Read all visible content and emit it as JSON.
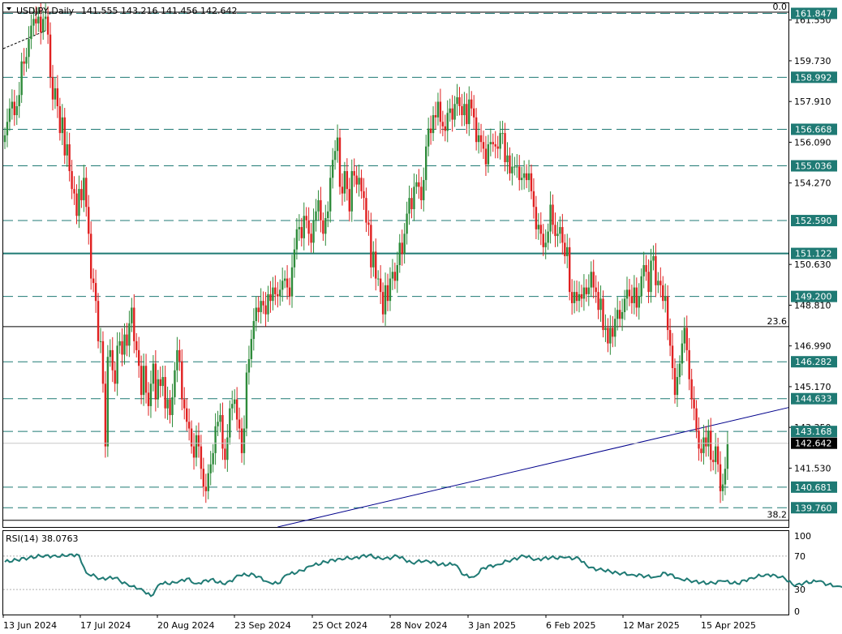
{
  "chart_data": {
    "type": "candlestick",
    "symbol": "USDJPY",
    "timeframe": "Daily",
    "ohlc_header": [
      "141.555",
      "143.216",
      "141.456",
      "142.642"
    ],
    "last_price": "142.642",
    "y_axis_ticks": [
      "161.550",
      "159.730",
      "157.910",
      "156.090",
      "154.270",
      "150.630",
      "148.810",
      "146.990",
      "145.170",
      "143.350",
      "141.530"
    ],
    "ylim": [
      138.9,
      162.3
    ],
    "x_tick_labels": [
      "13 Jun 2024",
      "17 Jul 2024",
      "20 Aug 2024",
      "23 Sep 2024",
      "25 Oct 2024",
      "28 Nov 2024",
      "3 Jan 2025",
      "6 Feb 2025",
      "12 Mar 2025",
      "15 Apr 2025"
    ],
    "levels": [
      {
        "value": 161.847,
        "label": "161.847",
        "style": "dashed"
      },
      {
        "value": 158.992,
        "label": "158.992",
        "style": "dashed"
      },
      {
        "value": 156.668,
        "label": "156.668",
        "style": "dashed"
      },
      {
        "value": 155.036,
        "label": "155.036",
        "style": "dashed"
      },
      {
        "value": 152.59,
        "label": "152.590",
        "style": "dashed"
      },
      {
        "value": 151.122,
        "label": "151.122",
        "style": "solid"
      },
      {
        "value": 149.2,
        "label": "149.200",
        "style": "dashed"
      },
      {
        "value": 146.282,
        "label": "146.282",
        "style": "dashed"
      },
      {
        "value": 144.633,
        "label": "144.633",
        "style": "dashed"
      },
      {
        "value": 143.168,
        "label": "143.168",
        "style": "dashed"
      },
      {
        "value": 140.681,
        "label": "140.681",
        "style": "dashed"
      },
      {
        "value": 139.76,
        "label": "139.760",
        "style": "dashed"
      }
    ],
    "fib_levels": [
      {
        "label": "0.0",
        "value": 161.9
      },
      {
        "label": "23.6",
        "value": 147.85
      },
      {
        "label": "38.2",
        "value": 139.2
      }
    ],
    "trendline": {
      "from": [
        114,
        138.9
      ],
      "to": [
        394,
        145.9
      ]
    },
    "colors": {
      "up": "#2e8b3a",
      "down": "#e02020",
      "level": "#1f7a74",
      "rsi": "#1f7a74"
    },
    "rsi": {
      "label": "RSI(14)",
      "value_text": "38.0763",
      "ticks": [
        "100",
        "70",
        "30",
        "0"
      ],
      "levels": [
        70,
        30
      ],
      "anchors": [
        [
          0,
          63
        ],
        [
          10,
          68
        ],
        [
          17,
          71
        ],
        [
          22,
          69
        ],
        [
          27,
          72
        ],
        [
          31,
          71
        ],
        [
          34,
          50
        ],
        [
          40,
          43
        ],
        [
          46,
          44
        ],
        [
          52,
          34
        ],
        [
          57,
          31
        ],
        [
          61,
          22
        ],
        [
          65,
          37
        ],
        [
          72,
          38
        ],
        [
          76,
          43
        ],
        [
          80,
          37
        ],
        [
          86,
          42
        ],
        [
          92,
          36
        ],
        [
          98,
          47
        ],
        [
          104,
          48
        ],
        [
          110,
          39
        ],
        [
          114,
          37
        ],
        [
          118,
          48
        ],
        [
          122,
          50
        ],
        [
          128,
          58
        ],
        [
          134,
          63
        ],
        [
          140,
          67
        ],
        [
          146,
          68
        ],
        [
          152,
          71
        ],
        [
          158,
          66
        ],
        [
          164,
          70
        ],
        [
          170,
          62
        ],
        [
          176,
          65
        ],
        [
          182,
          60
        ],
        [
          188,
          60
        ],
        [
          192,
          47
        ],
        [
          196,
          45
        ],
        [
          200,
          56
        ],
        [
          206,
          60
        ],
        [
          212,
          66
        ],
        [
          217,
          70
        ],
        [
          222,
          66
        ],
        [
          228,
          68
        ],
        [
          234,
          68
        ],
        [
          240,
          67
        ],
        [
          244,
          56
        ],
        [
          250,
          53
        ],
        [
          256,
          50
        ],
        [
          262,
          48
        ],
        [
          268,
          46
        ],
        [
          272,
          45
        ],
        [
          276,
          50
        ],
        [
          282,
          43
        ],
        [
          288,
          40
        ],
        [
          294,
          37
        ],
        [
          300,
          40
        ],
        [
          306,
          37
        ],
        [
          312,
          44
        ],
        [
          318,
          48
        ],
        [
          322,
          47
        ],
        [
          326,
          43
        ],
        [
          330,
          34
        ],
        [
          334,
          38
        ],
        [
          340,
          40
        ],
        [
          344,
          36
        ],
        [
          348,
          34
        ],
        [
          352,
          35
        ],
        [
          356,
          33
        ],
        [
          360,
          38
        ]
      ]
    },
    "candles": [
      [
        0,
        156.4
      ],
      [
        1,
        157.0
      ],
      [
        2,
        157.6
      ],
      [
        3,
        157.9
      ],
      [
        4,
        157.3
      ],
      [
        5,
        157.7
      ],
      [
        6,
        158.2
      ],
      [
        7,
        159.7
      ],
      [
        8,
        159.6
      ],
      [
        9,
        159.9
      ],
      [
        10,
        160.7
      ],
      [
        11,
        161.3
      ],
      [
        12,
        161.6
      ],
      [
        13,
        161.4
      ],
      [
        14,
        161.7
      ],
      [
        15,
        161.0
      ],
      [
        16,
        161.6
      ],
      [
        17,
        161.7
      ],
      [
        18,
        160.9
      ],
      [
        19,
        159.0
      ],
      [
        20,
        158.0
      ],
      [
        21,
        158.5
      ],
      [
        22,
        157.7
      ],
      [
        23,
        156.5
      ],
      [
        24,
        157.2
      ],
      [
        25,
        155.5
      ],
      [
        26,
        156.0
      ],
      [
        27,
        154.8
      ],
      [
        28,
        154.0
      ],
      [
        29,
        153.8
      ],
      [
        30,
        152.8
      ],
      [
        31,
        154.0
      ],
      [
        32,
        153.5
      ],
      [
        33,
        154.5
      ],
      [
        34,
        153.2
      ],
      [
        35,
        152.0
      ],
      [
        36,
        150.0
      ],
      [
        37,
        149.8
      ],
      [
        38,
        149.0
      ],
      [
        39,
        147.2
      ],
      [
        40,
        147.2
      ],
      [
        41,
        145.3
      ],
      [
        42,
        142.5
      ],
      [
        43,
        146.5
      ],
      [
        44,
        146.8
      ],
      [
        45,
        145.9
      ],
      [
        46,
        145.3
      ],
      [
        47,
        147.0
      ],
      [
        48,
        147.2
      ],
      [
        49,
        146.6
      ],
      [
        50,
        147.5
      ],
      [
        51,
        147.0
      ],
      [
        52,
        148.0
      ],
      [
        53,
        148.7
      ],
      [
        54,
        147.2
      ],
      [
        55,
        146.8
      ],
      [
        56,
        146.1
      ],
      [
        57,
        144.8
      ],
      [
        58,
        146.1
      ],
      [
        59,
        144.9
      ],
      [
        60,
        144.3
      ],
      [
        61,
        145.3
      ],
      [
        62,
        146.2
      ],
      [
        63,
        144.6
      ],
      [
        64,
        145.5
      ],
      [
        65,
        145.2
      ],
      [
        66,
        145.6
      ],
      [
        67,
        144.2
      ],
      [
        68,
        144.6
      ],
      [
        69,
        143.9
      ],
      [
        70,
        144.7
      ],
      [
        71,
        145.9
      ],
      [
        72,
        146.8
      ],
      [
        73,
        146.3
      ],
      [
        74,
        144.6
      ],
      [
        75,
        144.2
      ],
      [
        76,
        143.6
      ],
      [
        77,
        143.3
      ],
      [
        78,
        142.5
      ],
      [
        79,
        142.0
      ],
      [
        80,
        143.0
      ],
      [
        81,
        142.5
      ],
      [
        82,
        141.5
      ],
      [
        83,
        140.7
      ],
      [
        84,
        140.5
      ],
      [
        85,
        141.3
      ],
      [
        86,
        141.7
      ],
      [
        87,
        142.2
      ],
      [
        88,
        143.4
      ],
      [
        89,
        143.6
      ],
      [
        90,
        143.9
      ],
      [
        91,
        142.4
      ],
      [
        92,
        141.9
      ],
      [
        93,
        142.9
      ],
      [
        94,
        144.2
      ],
      [
        95,
        144.4
      ],
      [
        96,
        144.6
      ],
      [
        97,
        143.7
      ],
      [
        98,
        143.3
      ],
      [
        99,
        142.2
      ],
      [
        100,
        143.3
      ],
      [
        101,
        145.8
      ],
      [
        102,
        146.4
      ],
      [
        103,
        147.3
      ],
      [
        104,
        148.1
      ],
      [
        105,
        148.7
      ],
      [
        106,
        148.5
      ],
      [
        107,
        149.0
      ],
      [
        108,
        148.8
      ],
      [
        109,
        148.4
      ],
      [
        110,
        149.3
      ],
      [
        111,
        149.0
      ],
      [
        112,
        149.6
      ],
      [
        113,
        149.3
      ],
      [
        114,
        149.2
      ],
      [
        115,
        149.5
      ],
      [
        116,
        149.9
      ],
      [
        117,
        150.0
      ],
      [
        118,
        149.6
      ],
      [
        119,
        149.2
      ],
      [
        120,
        150.5
      ],
      [
        121,
        151.3
      ],
      [
        122,
        152.2
      ],
      [
        123,
        152.3
      ],
      [
        124,
        151.8
      ],
      [
        125,
        152.8
      ],
      [
        126,
        152.6
      ],
      [
        127,
        152.0
      ],
      [
        128,
        151.6
      ],
      [
        129,
        152.6
      ],
      [
        130,
        153.0
      ],
      [
        131,
        153.5
      ],
      [
        132,
        152.6
      ],
      [
        133,
        152.0
      ],
      [
        134,
        152.7
      ],
      [
        135,
        153.0
      ],
      [
        136,
        154.5
      ],
      [
        137,
        155.3
      ],
      [
        138,
        155.7
      ],
      [
        139,
        156.3
      ],
      [
        140,
        154.1
      ],
      [
        141,
        153.8
      ],
      [
        142,
        154.8
      ],
      [
        143,
        154.0
      ],
      [
        144,
        153.0
      ],
      [
        145,
        154.8
      ],
      [
        146,
        154.6
      ],
      [
        147,
        154.2
      ],
      [
        148,
        154.5
      ],
      [
        149,
        153.9
      ],
      [
        150,
        153.6
      ],
      [
        151,
        152.5
      ],
      [
        152,
        152.4
      ],
      [
        153,
        150.5
      ],
      [
        154,
        151.2
      ],
      [
        155,
        150.0
      ],
      [
        156,
        150.0
      ],
      [
        157,
        149.4
      ],
      [
        158,
        148.4
      ],
      [
        159,
        149.7
      ],
      [
        160,
        149.0
      ],
      [
        161,
        150.0
      ],
      [
        162,
        150.3
      ],
      [
        163,
        149.9
      ],
      [
        164,
        150.6
      ],
      [
        165,
        151.6
      ],
      [
        166,
        151.1
      ],
      [
        167,
        152.0
      ],
      [
        168,
        152.9
      ],
      [
        169,
        153.6
      ],
      [
        170,
        153.1
      ],
      [
        171,
        154.1
      ],
      [
        172,
        154.3
      ],
      [
        173,
        154.1
      ],
      [
        174,
        153.5
      ],
      [
        175,
        154.4
      ],
      [
        176,
        155.9
      ],
      [
        177,
        156.7
      ],
      [
        178,
        156.5
      ],
      [
        179,
        157.3
      ],
      [
        180,
        157.2
      ],
      [
        181,
        157.9
      ],
      [
        182,
        157.0
      ],
      [
        183,
        156.8
      ],
      [
        184,
        156.6
      ],
      [
        185,
        157.4
      ],
      [
        186,
        157.6
      ],
      [
        187,
        157.1
      ],
      [
        188,
        157.8
      ],
      [
        189,
        158.1
      ],
      [
        190,
        157.7
      ],
      [
        191,
        157.3
      ],
      [
        192,
        157.8
      ],
      [
        193,
        156.9
      ],
      [
        194,
        158.0
      ],
      [
        195,
        157.6
      ],
      [
        196,
        157.2
      ],
      [
        197,
        156.1
      ],
      [
        198,
        156.4
      ],
      [
        199,
        156.1
      ],
      [
        200,
        155.8
      ],
      [
        201,
        155.1
      ],
      [
        202,
        156.0
      ],
      [
        203,
        156.1
      ],
      [
        204,
        156.0
      ],
      [
        205,
        155.9
      ],
      [
        206,
        155.8
      ],
      [
        207,
        156.5
      ],
      [
        208,
        156.5
      ],
      [
        209,
        155.2
      ],
      [
        210,
        155.5
      ],
      [
        211,
        154.7
      ],
      [
        212,
        155.0
      ],
      [
        213,
        155.0
      ],
      [
        214,
        155.0
      ],
      [
        215,
        154.4
      ],
      [
        216,
        154.5
      ],
      [
        217,
        154.7
      ],
      [
        218,
        154.4
      ],
      [
        219,
        154.7
      ],
      [
        220,
        153.9
      ],
      [
        221,
        153.2
      ],
      [
        222,
        152.2
      ],
      [
        223,
        152.4
      ],
      [
        224,
        152.0
      ],
      [
        225,
        151.4
      ],
      [
        226,
        151.6
      ],
      [
        227,
        152.1
      ],
      [
        228,
        153.3
      ],
      [
        229,
        152.4
      ],
      [
        230,
        151.9
      ],
      [
        231,
        152.0
      ],
      [
        232,
        152.3
      ],
      [
        233,
        151.6
      ],
      [
        234,
        151.0
      ],
      [
        235,
        151.4
      ],
      [
        236,
        149.4
      ],
      [
        237,
        148.9
      ],
      [
        238,
        149.4
      ],
      [
        239,
        149.0
      ],
      [
        240,
        149.3
      ],
      [
        241,
        149.1
      ],
      [
        242,
        149.6
      ],
      [
        243,
        149.3
      ],
      [
        244,
        149.6
      ],
      [
        245,
        150.3
      ],
      [
        246,
        149.6
      ],
      [
        247,
        149.4
      ],
      [
        248,
        148.6
      ],
      [
        249,
        149.1
      ],
      [
        250,
        147.7
      ],
      [
        251,
        147.8
      ],
      [
        252,
        147.1
      ],
      [
        253,
        147.8
      ],
      [
        254,
        147.4
      ],
      [
        255,
        148.2
      ],
      [
        256,
        148.6
      ],
      [
        257,
        148.2
      ],
      [
        258,
        148.5
      ],
      [
        259,
        149.1
      ],
      [
        260,
        149.5
      ],
      [
        261,
        149.2
      ],
      [
        262,
        148.9
      ],
      [
        263,
        149.6
      ],
      [
        264,
        148.7
      ],
      [
        265,
        149.2
      ],
      [
        266,
        150.1
      ],
      [
        267,
        150.6
      ],
      [
        268,
        150.3
      ],
      [
        269,
        149.4
      ],
      [
        270,
        150.8
      ],
      [
        271,
        151.0
      ],
      [
        272,
        149.7
      ],
      [
        273,
        149.9
      ],
      [
        274,
        149.7
      ],
      [
        275,
        149.0
      ],
      [
        276,
        149.2
      ],
      [
        277,
        147.7
      ],
      [
        278,
        147.0
      ],
      [
        279,
        146.0
      ],
      [
        280,
        144.8
      ],
      [
        281,
        145.6
      ],
      [
        282,
        146.2
      ],
      [
        283,
        147.1
      ],
      [
        284,
        147.8
      ],
      [
        285,
        146.8
      ],
      [
        286,
        145.5
      ],
      [
        287,
        144.6
      ],
      [
        288,
        144.2
      ],
      [
        289,
        143.2
      ],
      [
        290,
        142.4
      ],
      [
        291,
        142.2
      ],
      [
        292,
        142.9
      ],
      [
        293,
        142.5
      ],
      [
        294,
        143.2
      ],
      [
        295,
        141.9
      ],
      [
        296,
        141.8
      ],
      [
        297,
        142.5
      ],
      [
        298,
        141.7
      ],
      [
        299,
        140.5
      ],
      [
        300,
        140.8
      ],
      [
        301,
        141.5
      ],
      [
        302,
        142.6
      ]
    ]
  }
}
